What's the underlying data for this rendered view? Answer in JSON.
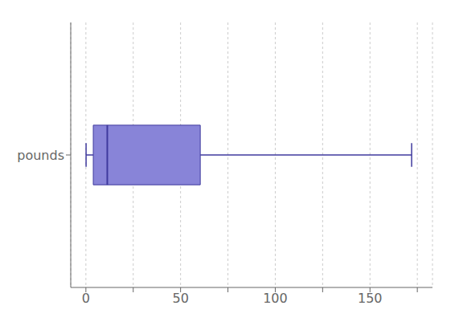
{
  "chart_data": {
    "type": "box",
    "orientation": "horizontal",
    "categories": [
      "pounds"
    ],
    "min": [
      0.1
    ],
    "q1": [
      3.9
    ],
    "median": [
      11.3
    ],
    "q3": [
      60.4
    ],
    "max": [
      172
    ],
    "xlim": [
      -8,
      183
    ],
    "xticks": [
      0,
      {
        "value": 25,
        "label": ""
      },
      50,
      {
        "value": 75,
        "label": ""
      },
      100,
      {
        "value": 125,
        "label": ""
      },
      150,
      {
        "value": 175,
        "label": ""
      }
    ],
    "grid": true
  }
}
